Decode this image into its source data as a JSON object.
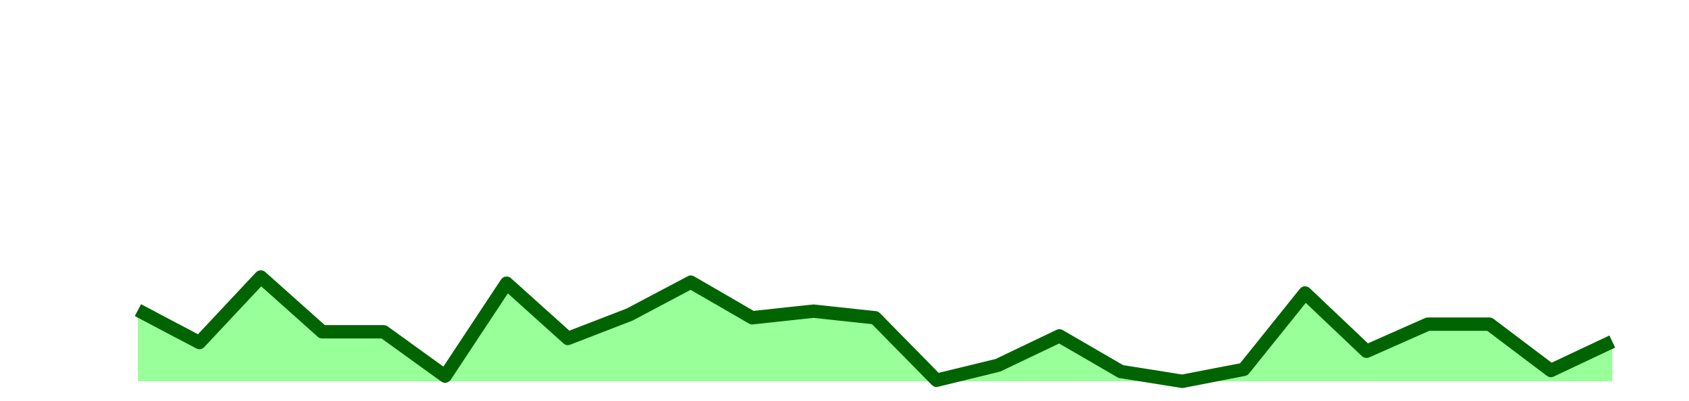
{
  "chart_data": {
    "type": "area",
    "values": [
      20.4,
      11.1,
      29.9,
      14.2,
      14.2,
      1.5,
      28.1,
      12.3,
      19.1,
      28.4,
      18.2,
      20.1,
      18.2,
      0.3,
      4.6,
      13.0,
      2.8,
      0,
      3.4,
      25.3,
      8.6,
      16.4,
      16.4,
      3.1,
      11.4
    ],
    "ylim": [
      0,
      100
    ],
    "color": "#006400",
    "fill": "#99ff99"
  }
}
